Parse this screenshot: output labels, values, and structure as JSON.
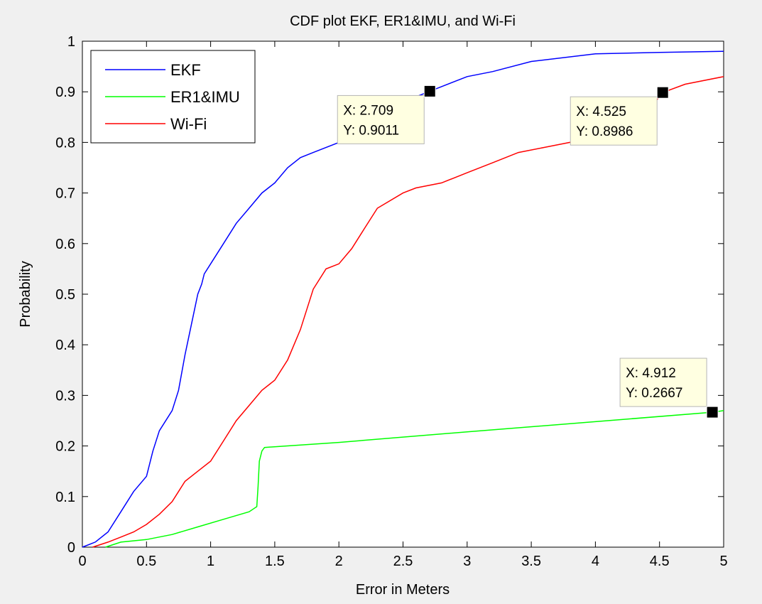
{
  "chart_data": {
    "type": "line",
    "title": "CDF plot EKF, ER1&IMU, and Wi-Fi",
    "xlabel": "Error in Meters",
    "ylabel": "Probability",
    "xlim": [
      0,
      5
    ],
    "ylim": [
      0,
      1
    ],
    "xticks": [
      "0",
      "0.5",
      "1",
      "1.5",
      "2",
      "2.5",
      "3",
      "3.5",
      "4",
      "4.5",
      "5"
    ],
    "yticks": [
      "0",
      "0.1",
      "0.2",
      "0.3",
      "0.4",
      "0.5",
      "0.6",
      "0.7",
      "0.8",
      "0.9",
      "1"
    ],
    "grid": false,
    "legend_position": "top-left",
    "series": [
      {
        "name": "EKF",
        "color": "#0000ff",
        "x": [
          0,
          0.1,
          0.2,
          0.3,
          0.4,
          0.5,
          0.55,
          0.6,
          0.7,
          0.75,
          0.8,
          0.85,
          0.9,
          0.93,
          0.95,
          1.0,
          1.1,
          1.2,
          1.3,
          1.4,
          1.5,
          1.6,
          1.7,
          1.8,
          2.0,
          2.2,
          2.4,
          2.6,
          2.709,
          3.0,
          3.2,
          3.5,
          4.0,
          4.5,
          5.0
        ],
        "y": [
          0,
          0.01,
          0.03,
          0.07,
          0.11,
          0.14,
          0.19,
          0.23,
          0.27,
          0.31,
          0.38,
          0.44,
          0.5,
          0.52,
          0.54,
          0.56,
          0.6,
          0.64,
          0.67,
          0.7,
          0.72,
          0.75,
          0.77,
          0.78,
          0.8,
          0.83,
          0.86,
          0.89,
          0.9011,
          0.93,
          0.94,
          0.96,
          0.975,
          0.978,
          0.98
        ]
      },
      {
        "name": "ER1&IMU",
        "color": "#00ff00",
        "x": [
          0.18,
          0.3,
          0.5,
          0.7,
          0.9,
          1.1,
          1.3,
          1.36,
          1.37,
          1.38,
          1.4,
          1.42,
          2.0,
          3.0,
          4.0,
          4.912,
          5.0
        ],
        "y": [
          0,
          0.01,
          0.015,
          0.025,
          0.04,
          0.055,
          0.07,
          0.08,
          0.12,
          0.17,
          0.19,
          0.197,
          0.207,
          0.228,
          0.248,
          0.2667,
          0.27
        ]
      },
      {
        "name": "Wi-Fi",
        "color": "#ff0000",
        "x": [
          0.08,
          0.2,
          0.3,
          0.4,
          0.5,
          0.6,
          0.7,
          0.8,
          0.9,
          1.0,
          1.1,
          1.2,
          1.3,
          1.4,
          1.5,
          1.6,
          1.7,
          1.8,
          1.9,
          2.0,
          2.1,
          2.2,
          2.3,
          2.5,
          2.6,
          2.8,
          3.0,
          3.2,
          3.4,
          3.6,
          3.8,
          4.0,
          4.2,
          4.4,
          4.525,
          4.7,
          5.0
        ],
        "y": [
          0,
          0.01,
          0.02,
          0.03,
          0.045,
          0.065,
          0.09,
          0.13,
          0.15,
          0.17,
          0.21,
          0.25,
          0.28,
          0.31,
          0.33,
          0.37,
          0.43,
          0.51,
          0.55,
          0.56,
          0.59,
          0.63,
          0.67,
          0.7,
          0.71,
          0.72,
          0.74,
          0.76,
          0.78,
          0.79,
          0.8,
          0.82,
          0.84,
          0.86,
          0.8986,
          0.915,
          0.93
        ]
      }
    ],
    "annotations": [
      {
        "x": 2.709,
        "y": 0.9011,
        "text_x": "X: 2.709",
        "text_y": "Y: 0.9011",
        "label_side": "lower-left"
      },
      {
        "x": 4.525,
        "y": 0.8986,
        "text_x": "X: 4.525",
        "text_y": "Y: 0.8986",
        "label_side": "lower-left"
      },
      {
        "x": 4.912,
        "y": 0.2667,
        "text_x": "X: 4.912",
        "text_y": "Y: 0.2667",
        "label_side": "upper-left"
      }
    ]
  }
}
